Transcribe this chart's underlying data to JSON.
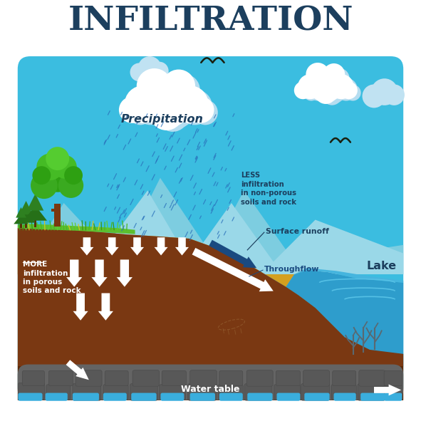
{
  "title": "INFILTRATION",
  "title_color": "#1c3f5e",
  "title_fontsize": 34,
  "bg_color": "#ffffff",
  "sky_color": "#3bbde0",
  "mountain_far_color": "#6dcbe0",
  "mountain_mid_color": "#95d8e8",
  "ground_yellow_color": "#d4a020",
  "ground_soil_color": "#7a3812",
  "ground_dark_color": "#5c2a0a",
  "water_table_bg": "#686868",
  "water_color": "#3aaedd",
  "lake_color": "#2e9dcc",
  "lake_light_color": "#55b8e0",
  "grass_color": "#5cbf30",
  "grass_dark": "#3a9a18",
  "tree_trunk": "#7a3810",
  "tree_green1": "#2ea010",
  "tree_green2": "#45bb20",
  "tree_green3": "#60cc35",
  "pine_color": "#287818",
  "cloud_white": "#ffffff",
  "cloud_shadow": "#b8dff0",
  "rain_color": "#2a70bb",
  "arrow_white": "#ffffff",
  "arrow_blue": "#1a4a7a",
  "text_dark": "#1c3f5e",
  "text_white": "#ffffff",
  "bird_color": "#1a2010",
  "plant_color": "#5a6870",
  "labels": {
    "title": "INFILTRATION",
    "precipitation": "Precipitation",
    "less_infiltration": "LESS\ninfiltration\nin non-porous\nsoils and rock",
    "surface_runoff": "Surface runoff",
    "throughflow": "Throughflow",
    "lake": "Lake",
    "more_infiltration": "MORE\ninfiltration\nin porous\nsoils and rock",
    "water_table": "Water table"
  }
}
